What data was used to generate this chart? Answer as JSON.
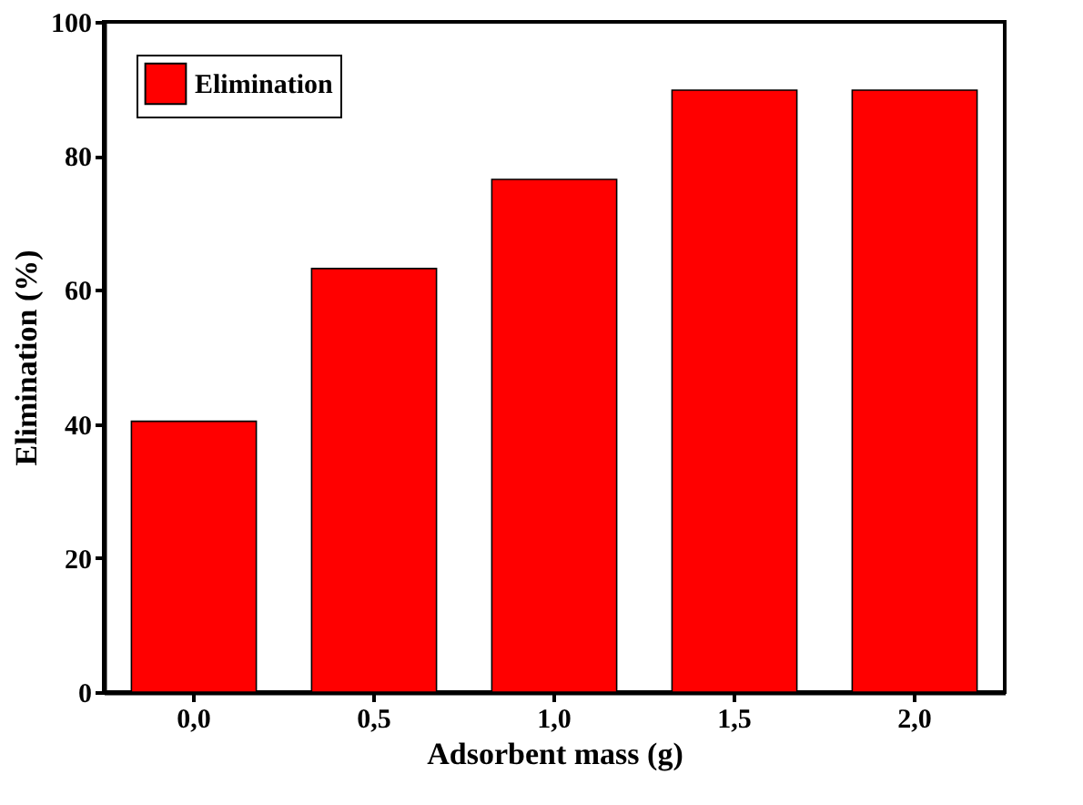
{
  "chart_data": {
    "type": "bar",
    "xlabel": "Adsorbent mass (g)",
    "ylabel": "Elimination (%)",
    "categories": [
      "0,0",
      "0,5",
      "1,0",
      "1,5",
      "2,0"
    ],
    "series": [
      {
        "name": "Elimination",
        "color": "#ff0000",
        "values": [
          40.4,
          63.2,
          76.5,
          89.8,
          89.8
        ]
      }
    ],
    "ylim": [
      0,
      100
    ],
    "yticks": [
      0,
      20,
      40,
      60,
      80,
      100
    ],
    "grid": false,
    "legend": "top left"
  }
}
